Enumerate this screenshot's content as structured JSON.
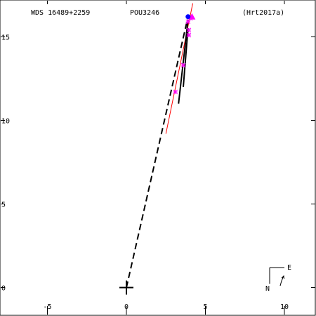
{
  "header": {
    "wds_id": "WDS 16489+2259",
    "discoverer": "POU3246",
    "reference": "(Hrt2017a)"
  },
  "compass": {
    "north_label": "N",
    "east_label": "E"
  },
  "chart_data": {
    "type": "scatter",
    "title": "",
    "xlabel": "",
    "ylabel": "",
    "xlim": [
      -8,
      12
    ],
    "ylim": [
      -1.7,
      17.2
    ],
    "x_ticks": [
      -5,
      0,
      5,
      10
    ],
    "y_ticks": [
      0,
      5,
      10,
      15
    ],
    "primary_star": [
      0,
      0
    ],
    "orbit_path": [
      [
        0,
        0
      ],
      [
        3.9,
        16.2
      ]
    ],
    "reference_line": [
      [
        2.5,
        9.2
      ],
      [
        4.2,
        17.0
      ]
    ],
    "residual_segments": [
      [
        [
          3.3,
          11.0
        ],
        [
          3.9,
          16.0
        ]
      ],
      [
        [
          3.6,
          12.0
        ],
        [
          3.9,
          15.5
        ]
      ]
    ],
    "measurements": [
      {
        "x": 3.1,
        "y": 11.7,
        "marker": "star"
      },
      {
        "x": 3.6,
        "y": 13.3,
        "marker": "star"
      },
      {
        "x": 3.95,
        "y": 15.1,
        "marker": "star"
      },
      {
        "x": 3.95,
        "y": 15.4,
        "marker": "star"
      },
      {
        "x": 3.9,
        "y": 15.9,
        "marker": "star"
      },
      {
        "x": 4.05,
        "y": 16.1,
        "marker": "star"
      }
    ],
    "latest_measurement": {
      "x": 4.15,
      "y": 16.2,
      "marker": "triangle"
    },
    "current_position": {
      "x": 3.9,
      "y": 16.2,
      "marker": "circle"
    },
    "colors": {
      "axes": "#000000",
      "orbit": "#000000",
      "reference_line": "#ff0000",
      "measurement": "#ff00ff",
      "current_position": "#0000ff"
    }
  }
}
